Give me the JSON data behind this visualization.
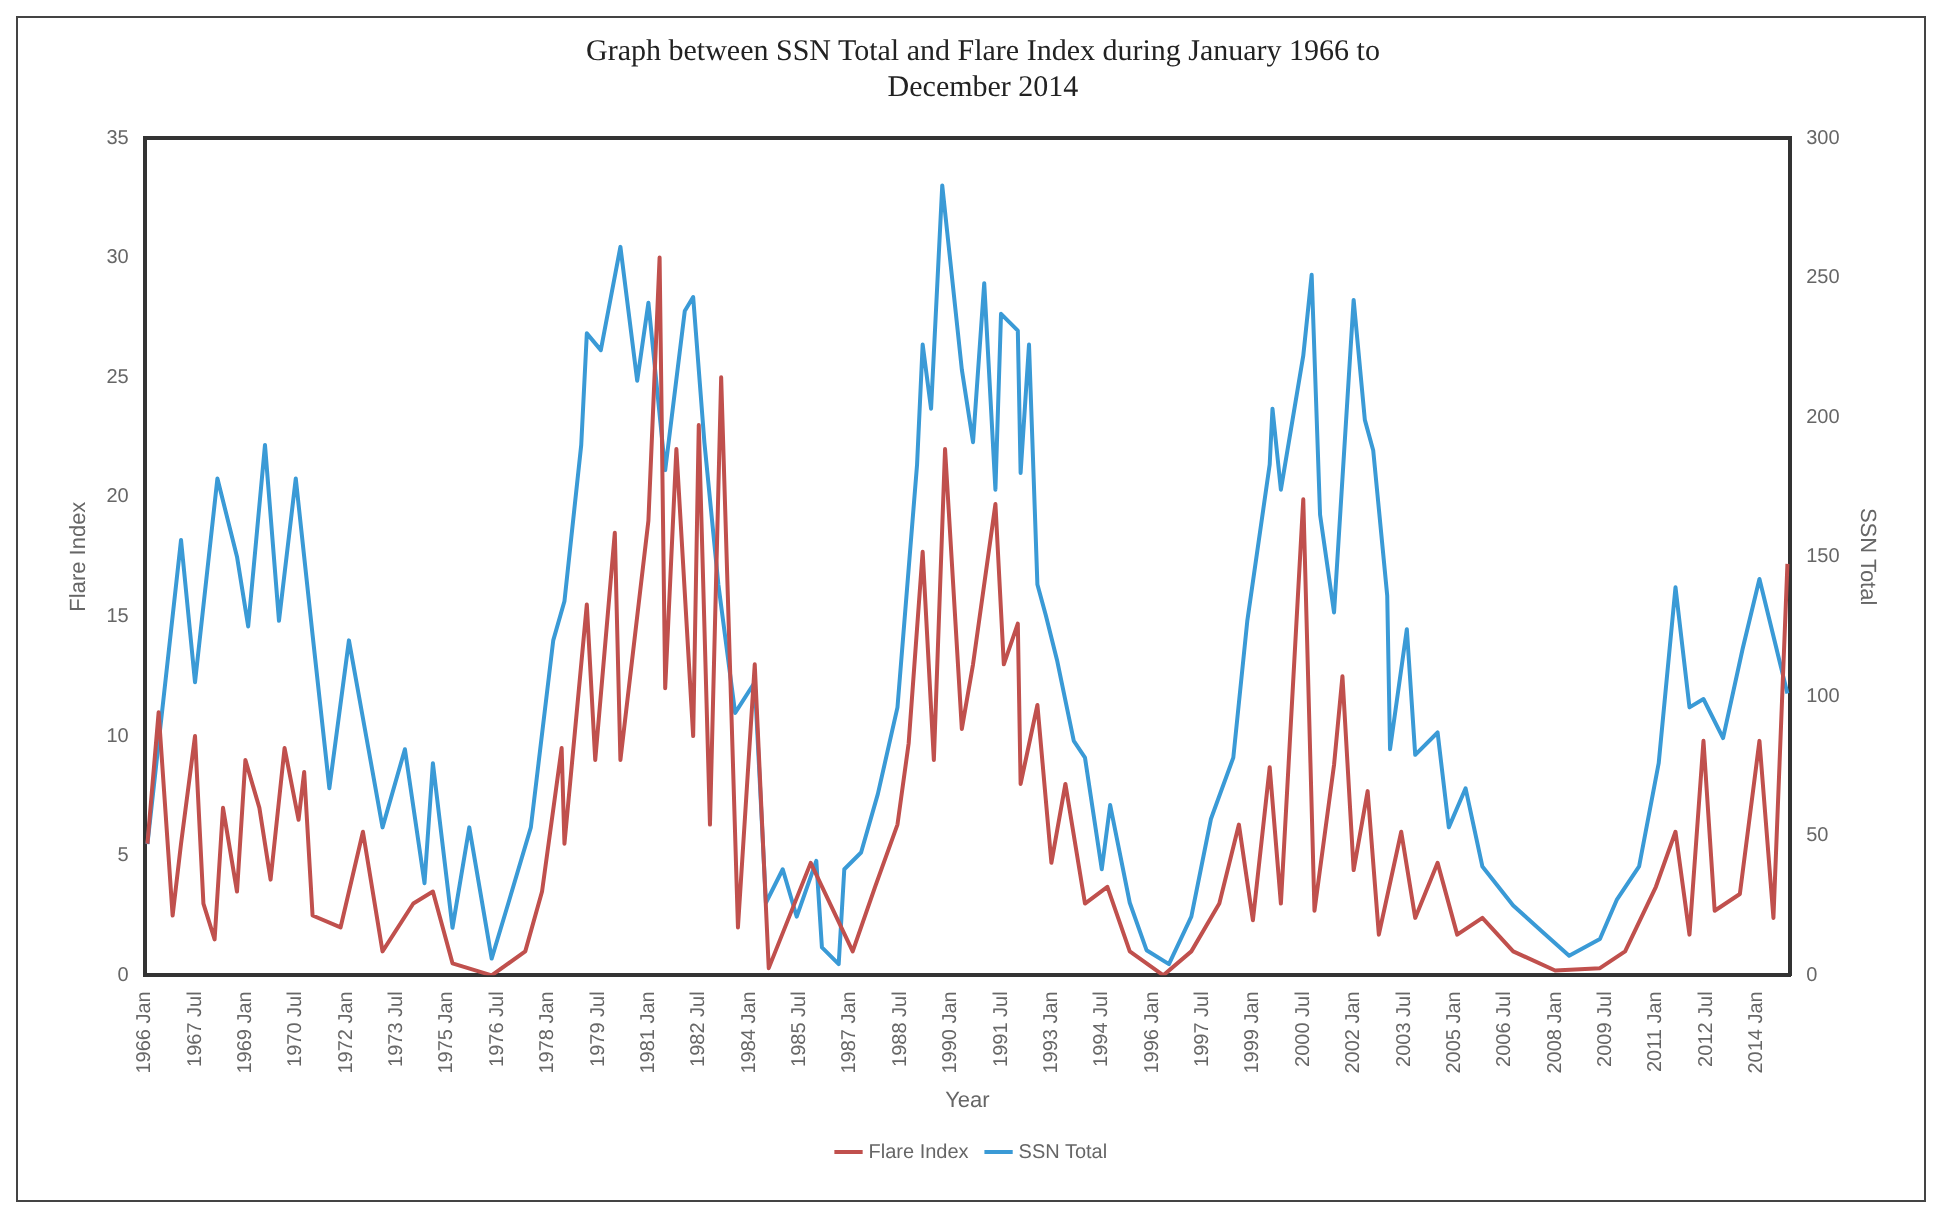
{
  "chart_data": {
    "type": "line",
    "title": "Graph between SSN Total and Flare Index during January 1966 to December 2014",
    "xlabel": "Year",
    "ylabel": "Flare Index",
    "y2label": "SSN Total",
    "xlim": [
      "1966-01",
      "2015-01"
    ],
    "xticks": [
      {
        "value": "1966-01",
        "label": "1966 Jan"
      },
      {
        "value": "1967-07",
        "label": "1967 Jul"
      },
      {
        "value": "1969-01",
        "label": "1969 Jan"
      },
      {
        "value": "1970-07",
        "label": "1970 Jul"
      },
      {
        "value": "1972-01",
        "label": "1972 Jan"
      },
      {
        "value": "1973-07",
        "label": "1973 Jul"
      },
      {
        "value": "1975-01",
        "label": "1975 Jan"
      },
      {
        "value": "1976-07",
        "label": "1976 Jul"
      },
      {
        "value": "1978-01",
        "label": "1978 Jan"
      },
      {
        "value": "1979-07",
        "label": "1979 Jul"
      },
      {
        "value": "1981-01",
        "label": "1981 Jan"
      },
      {
        "value": "1982-07",
        "label": "1982 Jul"
      },
      {
        "value": "1984-01",
        "label": "1984 Jan"
      },
      {
        "value": "1985-07",
        "label": "1985 Jul"
      },
      {
        "value": "1987-01",
        "label": "1987 Jan"
      },
      {
        "value": "1988-07",
        "label": "1988 Jul"
      },
      {
        "value": "1990-01",
        "label": "1990 Jan"
      },
      {
        "value": "1991-07",
        "label": "1991 Jul"
      },
      {
        "value": "1993-01",
        "label": "1993 Jan"
      },
      {
        "value": "1994-07",
        "label": "1994 Jul"
      },
      {
        "value": "1996-01",
        "label": "1996 Jan"
      },
      {
        "value": "1997-07",
        "label": "1997 Jul"
      },
      {
        "value": "1999-01",
        "label": "1999 Jan"
      },
      {
        "value": "2000-07",
        "label": "2000 Jul"
      },
      {
        "value": "2002-01",
        "label": "2002 Jan"
      },
      {
        "value": "2003-07",
        "label": "2003 Jul"
      },
      {
        "value": "2005-01",
        "label": "2005 Jan"
      },
      {
        "value": "2006-07",
        "label": "2006 Jul"
      },
      {
        "value": "2008-01",
        "label": "2008 Jan"
      },
      {
        "value": "2009-07",
        "label": "2009 Jul"
      },
      {
        "value": "2011-01",
        "label": "2011 Jan"
      },
      {
        "value": "2012-07",
        "label": "2012 Jul"
      },
      {
        "value": "2014-01",
        "label": "2014 Jan"
      }
    ],
    "ylim": [
      0,
      35
    ],
    "yticks": [
      0,
      5,
      10,
      15,
      20,
      25,
      30,
      35
    ],
    "y2lim": [
      0,
      300
    ],
    "y2ticks": [
      0,
      50,
      100,
      150,
      200,
      250,
      300
    ],
    "grid": false,
    "legend": "bottom",
    "marker": "none",
    "line_style": "solid",
    "series": [
      {
        "name": "Flare Index",
        "color": "#c0504d",
        "x": [
          "1966-02",
          "1966-06",
          "1966-11",
          "1967-02",
          "1967-07",
          "1967-10",
          "1968-02",
          "1968-05",
          "1968-10",
          "1969-01",
          "1969-06",
          "1969-10",
          "1970-03",
          "1970-08",
          "1970-10",
          "1971-01",
          "1971-11",
          "1972-07",
          "1973-02",
          "1974-01",
          "1974-08",
          "1975-03",
          "1976-05",
          "1977-05",
          "1977-11",
          "1978-06",
          "1978-07",
          "1979-03",
          "1979-06",
          "1980-01",
          "1980-03",
          "1981-01",
          "1981-05",
          "1981-07",
          "1981-11",
          "1982-05",
          "1982-07",
          "1982-11",
          "1983-03",
          "1983-09",
          "1984-03",
          "1984-08",
          "1985-11",
          "1987-02",
          "1987-10",
          "1988-06",
          "1988-10",
          "1989-03",
          "1989-07",
          "1989-11",
          "1990-05",
          "1990-09",
          "1991-05",
          "1991-08",
          "1992-01",
          "1992-02",
          "1992-08",
          "1993-01",
          "1993-06",
          "1994-01",
          "1994-09",
          "1995-05",
          "1996-05",
          "1997-03",
          "1998-01",
          "1998-08",
          "1999-01",
          "1999-07",
          "1999-11",
          "2000-07",
          "2000-11",
          "2001-06",
          "2001-09",
          "2002-01",
          "2002-06",
          "2002-10",
          "2003-06",
          "2003-11",
          "2004-07",
          "2005-02",
          "2005-11",
          "2006-10",
          "2008-01",
          "2009-05",
          "2010-02",
          "2011-01",
          "2011-08",
          "2012-01",
          "2012-06",
          "2012-10",
          "2013-07",
          "2014-02",
          "2014-07",
          "2014-12"
        ],
        "values": [
          5.5,
          11,
          2.5,
          5.5,
          10,
          3,
          1.5,
          7,
          3.5,
          9,
          7,
          4,
          9.5,
          6.5,
          8.5,
          2.5,
          2,
          6,
          1,
          3,
          3.5,
          0.5,
          0,
          1,
          3.5,
          9.5,
          5.5,
          15.5,
          9,
          18.5,
          9,
          19,
          30,
          12,
          22,
          10,
          23,
          6.3,
          25,
          2,
          13,
          0.3,
          4.7,
          1,
          3.7,
          6.3,
          9.7,
          17.7,
          9,
          22,
          10.3,
          13,
          19.7,
          13,
          14.7,
          8,
          11.3,
          4.7,
          8,
          3,
          3.7,
          1,
          0,
          1,
          3,
          6.3,
          2.3,
          8.7,
          3,
          19.9,
          2.7,
          8.8,
          12.5,
          4.4,
          7.7,
          1.7,
          6,
          2.4,
          4.7,
          1.7,
          2.4,
          1,
          0.2,
          0.3,
          1,
          3.7,
          6,
          1.7,
          9.8,
          2.7,
          3.4,
          9.8,
          2.4,
          17.2
        ]
      },
      {
        "name": "SSN Total",
        "color": "#3a9ad6",
        "axis": "y2",
        "x": [
          "1966-02",
          "1967-02",
          "1967-07",
          "1968-03",
          "1968-10",
          "1969-02",
          "1969-08",
          "1970-01",
          "1970-07",
          "1971-01",
          "1971-07",
          "1972-02",
          "1972-09",
          "1973-02",
          "1973-10",
          "1974-05",
          "1974-08",
          "1975-03",
          "1975-09",
          "1976-05",
          "1976-11",
          "1977-07",
          "1978-03",
          "1978-07",
          "1979-01",
          "1979-03",
          "1979-08",
          "1980-03",
          "1980-09",
          "1981-01",
          "1981-07",
          "1982-02",
          "1982-05",
          "1982-09",
          "1983-02",
          "1983-08",
          "1984-03",
          "1984-07",
          "1985-01",
          "1985-06",
          "1986-01",
          "1986-03",
          "1986-09",
          "1986-11",
          "1987-05",
          "1987-11",
          "1988-06",
          "1989-01",
          "1989-03",
          "1989-06",
          "1989-10",
          "1990-05",
          "1990-09",
          "1991-01",
          "1991-05",
          "1991-07",
          "1992-01",
          "1992-02",
          "1992-05",
          "1992-08",
          "1992-11",
          "1993-03",
          "1993-09",
          "1994-01",
          "1994-07",
          "1994-10",
          "1995-05",
          "1995-11",
          "1996-07",
          "1997-03",
          "1997-10",
          "1998-06",
          "1998-11",
          "1999-07",
          "1999-08",
          "1999-11",
          "2000-07",
          "2000-10",
          "2001-01",
          "2001-06",
          "2002-01",
          "2002-05",
          "2002-08",
          "2003-01",
          "2003-02",
          "2003-08",
          "2003-11",
          "2004-07",
          "2004-11",
          "2005-05",
          "2005-11",
          "2006-10",
          "2007-08",
          "2008-06",
          "2009-05",
          "2009-11",
          "2010-07",
          "2011-02",
          "2011-08",
          "2012-01",
          "2012-06",
          "2013-01",
          "2013-08",
          "2014-02",
          "2014-12"
        ],
        "values": [
          47,
          156,
          105,
          178,
          150,
          125,
          190,
          127,
          178,
          122,
          67,
          120,
          81,
          53,
          81,
          33,
          76,
          17,
          53,
          6,
          26,
          53,
          120,
          134,
          190,
          230,
          224,
          261,
          213,
          241,
          181,
          238,
          243,
          191,
          140,
          94,
          105,
          26,
          38,
          21,
          41,
          10,
          4,
          38,
          44,
          65,
          96,
          183,
          226,
          203,
          283,
          217,
          191,
          248,
          174,
          237,
          231,
          180,
          226,
          140,
          129,
          113,
          84,
          78,
          38,
          61,
          26,
          9,
          4,
          21,
          56,
          78,
          127,
          183,
          203,
          174,
          222,
          251,
          165,
          130,
          242,
          199,
          188,
          136,
          81,
          124,
          79,
          87,
          53,
          67,
          39,
          25,
          16,
          7,
          13,
          27,
          39,
          76,
          139,
          96,
          99,
          85,
          117,
          142,
          101
        ]
      }
    ]
  }
}
